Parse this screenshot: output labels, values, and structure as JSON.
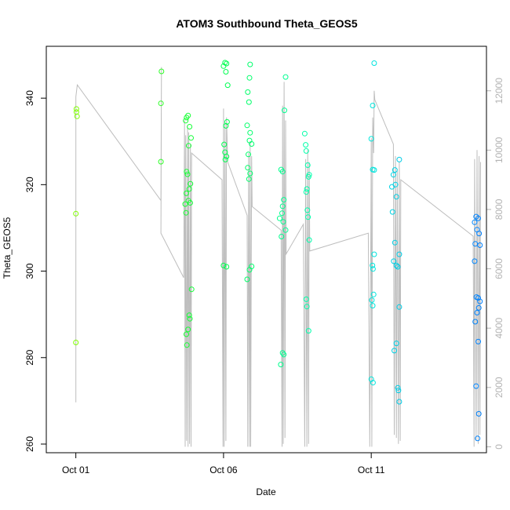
{
  "chart_data": {
    "type": "scatter",
    "title": "ATOM3 Southbound Theta_GEOS5",
    "xlabel": "Date",
    "ylabel": "Theta_GEOS5",
    "x_ticks": [
      {
        "day": 1,
        "label": "Oct 01"
      },
      {
        "day": 6,
        "label": "Oct 06"
      },
      {
        "day": 11,
        "label": "Oct 11"
      }
    ],
    "xlim_days": [
      0.0,
      14.9
    ],
    "ylim": [
      258,
      352
    ],
    "y_ticks": [
      260,
      280,
      300,
      320,
      340
    ],
    "secondary_axis": {
      "ylim": [
        -200,
        13500
      ],
      "ticks": [
        0,
        2000,
        4000,
        6000,
        8000,
        10000,
        12000
      ]
    },
    "color_gradient": [
      "#80ff00",
      "#00ff40",
      "#00ffd5",
      "#0080ff"
    ],
    "points": [
      {
        "day": 1.02,
        "y": 337.5
      },
      {
        "day": 1.02,
        "y": 336.8
      },
      {
        "day": 1.04,
        "y": 335.8
      },
      {
        "day": 1.0,
        "y": 313.3
      },
      {
        "day": 1.0,
        "y": 283.5
      },
      {
        "day": 3.9,
        "y": 346.2
      },
      {
        "day": 3.88,
        "y": 338.8
      },
      {
        "day": 3.88,
        "y": 325.3
      },
      {
        "day": 4.75,
        "y": 335.5
      },
      {
        "day": 4.72,
        "y": 334.8
      },
      {
        "day": 4.8,
        "y": 336.0
      },
      {
        "day": 4.85,
        "y": 333.4
      },
      {
        "day": 4.9,
        "y": 330.8
      },
      {
        "day": 4.82,
        "y": 329.0
      },
      {
        "day": 4.75,
        "y": 323.0
      },
      {
        "day": 4.78,
        "y": 322.4
      },
      {
        "day": 4.88,
        "y": 320.2
      },
      {
        "day": 4.84,
        "y": 319.0
      },
      {
        "day": 4.74,
        "y": 318.0
      },
      {
        "day": 4.81,
        "y": 316.3
      },
      {
        "day": 4.7,
        "y": 315.5
      },
      {
        "day": 4.87,
        "y": 315.8
      },
      {
        "day": 4.73,
        "y": 313.5
      },
      {
        "day": 4.92,
        "y": 295.8
      },
      {
        "day": 4.84,
        "y": 289.8
      },
      {
        "day": 4.86,
        "y": 289.0
      },
      {
        "day": 4.8,
        "y": 286.5
      },
      {
        "day": 4.74,
        "y": 285.4
      },
      {
        "day": 4.76,
        "y": 282.9
      },
      {
        "day": 6.05,
        "y": 348.2
      },
      {
        "day": 6.1,
        "y": 348.0
      },
      {
        "day": 6.0,
        "y": 347.4
      },
      {
        "day": 6.08,
        "y": 346.1
      },
      {
        "day": 6.14,
        "y": 343.0
      },
      {
        "day": 6.12,
        "y": 334.5
      },
      {
        "day": 6.08,
        "y": 333.6
      },
      {
        "day": 6.02,
        "y": 329.3
      },
      {
        "day": 6.05,
        "y": 327.5
      },
      {
        "day": 6.1,
        "y": 326.5
      },
      {
        "day": 6.06,
        "y": 325.8
      },
      {
        "day": 6.0,
        "y": 301.3
      },
      {
        "day": 6.1,
        "y": 301.0
      },
      {
        "day": 6.9,
        "y": 347.8
      },
      {
        "day": 6.88,
        "y": 344.7
      },
      {
        "day": 6.82,
        "y": 341.4
      },
      {
        "day": 6.86,
        "y": 339.1
      },
      {
        "day": 6.8,
        "y": 333.7
      },
      {
        "day": 6.9,
        "y": 332.0
      },
      {
        "day": 6.88,
        "y": 330.2
      },
      {
        "day": 6.95,
        "y": 329.4
      },
      {
        "day": 6.84,
        "y": 327.0
      },
      {
        "day": 6.82,
        "y": 323.9
      },
      {
        "day": 6.9,
        "y": 322.6
      },
      {
        "day": 6.86,
        "y": 321.3
      },
      {
        "day": 6.95,
        "y": 301.1
      },
      {
        "day": 6.88,
        "y": 300.3
      },
      {
        "day": 6.8,
        "y": 298.1
      },
      {
        "day": 8.1,
        "y": 344.9
      },
      {
        "day": 8.06,
        "y": 337.2
      },
      {
        "day": 7.95,
        "y": 323.5
      },
      {
        "day": 8.0,
        "y": 323.0
      },
      {
        "day": 8.04,
        "y": 316.5
      },
      {
        "day": 8.0,
        "y": 315.0
      },
      {
        "day": 7.98,
        "y": 313.4
      },
      {
        "day": 7.9,
        "y": 312.2
      },
      {
        "day": 8.02,
        "y": 311.4
      },
      {
        "day": 7.96,
        "y": 308.0
      },
      {
        "day": 8.1,
        "y": 309.5
      },
      {
        "day": 8.0,
        "y": 281.1
      },
      {
        "day": 8.04,
        "y": 280.7
      },
      {
        "day": 7.94,
        "y": 278.4
      },
      {
        "day": 8.75,
        "y": 331.8
      },
      {
        "day": 8.78,
        "y": 329.2
      },
      {
        "day": 8.8,
        "y": 327.8
      },
      {
        "day": 8.85,
        "y": 324.5
      },
      {
        "day": 8.9,
        "y": 322.3
      },
      {
        "day": 8.88,
        "y": 321.8
      },
      {
        "day": 8.82,
        "y": 319.0
      },
      {
        "day": 8.8,
        "y": 318.3
      },
      {
        "day": 8.84,
        "y": 314.1
      },
      {
        "day": 8.86,
        "y": 312.5
      },
      {
        "day": 8.9,
        "y": 307.2
      },
      {
        "day": 8.8,
        "y": 293.5
      },
      {
        "day": 8.82,
        "y": 291.8
      },
      {
        "day": 8.88,
        "y": 286.2
      },
      {
        "day": 11.1,
        "y": 348.1
      },
      {
        "day": 11.05,
        "y": 338.3
      },
      {
        "day": 11.0,
        "y": 330.6
      },
      {
        "day": 11.05,
        "y": 323.5
      },
      {
        "day": 11.1,
        "y": 323.4
      },
      {
        "day": 11.1,
        "y": 303.9
      },
      {
        "day": 11.04,
        "y": 301.3
      },
      {
        "day": 11.06,
        "y": 300.5
      },
      {
        "day": 11.08,
        "y": 294.6
      },
      {
        "day": 11.02,
        "y": 293.3
      },
      {
        "day": 11.05,
        "y": 292.0
      },
      {
        "day": 11.0,
        "y": 275.0
      },
      {
        "day": 11.06,
        "y": 274.2
      },
      {
        "day": 11.95,
        "y": 325.8
      },
      {
        "day": 11.8,
        "y": 323.4
      },
      {
        "day": 11.75,
        "y": 322.3
      },
      {
        "day": 11.82,
        "y": 320.0
      },
      {
        "day": 11.7,
        "y": 319.5
      },
      {
        "day": 11.85,
        "y": 317.2
      },
      {
        "day": 11.72,
        "y": 313.7
      },
      {
        "day": 11.8,
        "y": 306.6
      },
      {
        "day": 11.95,
        "y": 303.9
      },
      {
        "day": 11.76,
        "y": 302.3
      },
      {
        "day": 11.85,
        "y": 301.3
      },
      {
        "day": 11.9,
        "y": 301.0
      },
      {
        "day": 11.95,
        "y": 291.7
      },
      {
        "day": 11.85,
        "y": 283.3
      },
      {
        "day": 11.78,
        "y": 281.6
      },
      {
        "day": 11.9,
        "y": 273.0
      },
      {
        "day": 11.92,
        "y": 272.4
      },
      {
        "day": 11.95,
        "y": 269.8
      },
      {
        "day": 14.55,
        "y": 312.6
      },
      {
        "day": 14.62,
        "y": 312.2
      },
      {
        "day": 14.5,
        "y": 311.3
      },
      {
        "day": 14.58,
        "y": 309.6
      },
      {
        "day": 14.65,
        "y": 308.7
      },
      {
        "day": 14.52,
        "y": 306.3
      },
      {
        "day": 14.68,
        "y": 306.0
      },
      {
        "day": 14.5,
        "y": 302.3
      },
      {
        "day": 14.56,
        "y": 294.0
      },
      {
        "day": 14.62,
        "y": 293.8
      },
      {
        "day": 14.68,
        "y": 293.0
      },
      {
        "day": 14.58,
        "y": 290.4
      },
      {
        "day": 14.64,
        "y": 291.5
      },
      {
        "day": 14.52,
        "y": 288.3
      },
      {
        "day": 14.62,
        "y": 283.7
      },
      {
        "day": 14.55,
        "y": 273.4
      },
      {
        "day": 14.64,
        "y": 267.0
      },
      {
        "day": 14.6,
        "y": 261.3
      }
    ],
    "altitude_track": [
      [
        1.0,
        1500
      ],
      [
        1.0,
        11800
      ],
      [
        1.05,
        12200
      ],
      [
        3.88,
        8300
      ],
      [
        3.9,
        12800
      ],
      [
        3.88,
        7200
      ],
      [
        4.65,
        5700
      ],
      [
        4.68,
        11000
      ],
      [
        4.7,
        0
      ],
      [
        4.72,
        10500
      ],
      [
        4.75,
        200
      ],
      [
        4.78,
        10800
      ],
      [
        4.8,
        0
      ],
      [
        4.82,
        10600
      ],
      [
        4.85,
        100
      ],
      [
        4.88,
        10200
      ],
      [
        4.9,
        0
      ],
      [
        4.92,
        9900
      ],
      [
        5.95,
        9000
      ],
      [
        5.98,
        0
      ],
      [
        6.0,
        11400
      ],
      [
        6.02,
        0
      ],
      [
        6.05,
        10900
      ],
      [
        6.08,
        200
      ],
      [
        6.1,
        11100
      ],
      [
        6.14,
        9600
      ],
      [
        6.8,
        7800
      ],
      [
        6.82,
        0
      ],
      [
        6.85,
        9900
      ],
      [
        6.88,
        0
      ],
      [
        6.9,
        10300
      ],
      [
        6.92,
        0
      ],
      [
        6.95,
        9800
      ],
      [
        6.97,
        8100
      ],
      [
        7.95,
        7300
      ],
      [
        7.98,
        0
      ],
      [
        8.0,
        11500
      ],
      [
        8.02,
        100
      ],
      [
        8.05,
        12300
      ],
      [
        8.08,
        300
      ],
      [
        8.1,
        11000
      ],
      [
        8.12,
        6500
      ],
      [
        8.7,
        7500
      ],
      [
        8.75,
        0
      ],
      [
        8.78,
        9700
      ],
      [
        8.82,
        0
      ],
      [
        8.85,
        10000
      ],
      [
        8.88,
        100
      ],
      [
        8.9,
        9600
      ],
      [
        8.92,
        6600
      ],
      [
        10.9,
        7200
      ],
      [
        10.95,
        0
      ],
      [
        11.0,
        10400
      ],
      [
        11.02,
        0
      ],
      [
        11.05,
        11100
      ],
      [
        11.08,
        9900
      ],
      [
        11.1,
        12000
      ],
      [
        11.12,
        11700
      ],
      [
        11.75,
        10200
      ],
      [
        11.78,
        400
      ],
      [
        11.82,
        9800
      ],
      [
        11.85,
        300
      ],
      [
        11.88,
        9300
      ],
      [
        11.92,
        100
      ],
      [
        11.95,
        9600
      ],
      [
        11.98,
        200
      ],
      [
        12.0,
        9000
      ],
      [
        14.45,
        7100
      ],
      [
        14.48,
        0
      ],
      [
        14.5,
        9700
      ],
      [
        14.55,
        200
      ],
      [
        14.58,
        10000
      ],
      [
        14.62,
        100
      ],
      [
        14.65,
        9800
      ],
      [
        14.68,
        400
      ],
      [
        14.7,
        9600
      ]
    ]
  }
}
